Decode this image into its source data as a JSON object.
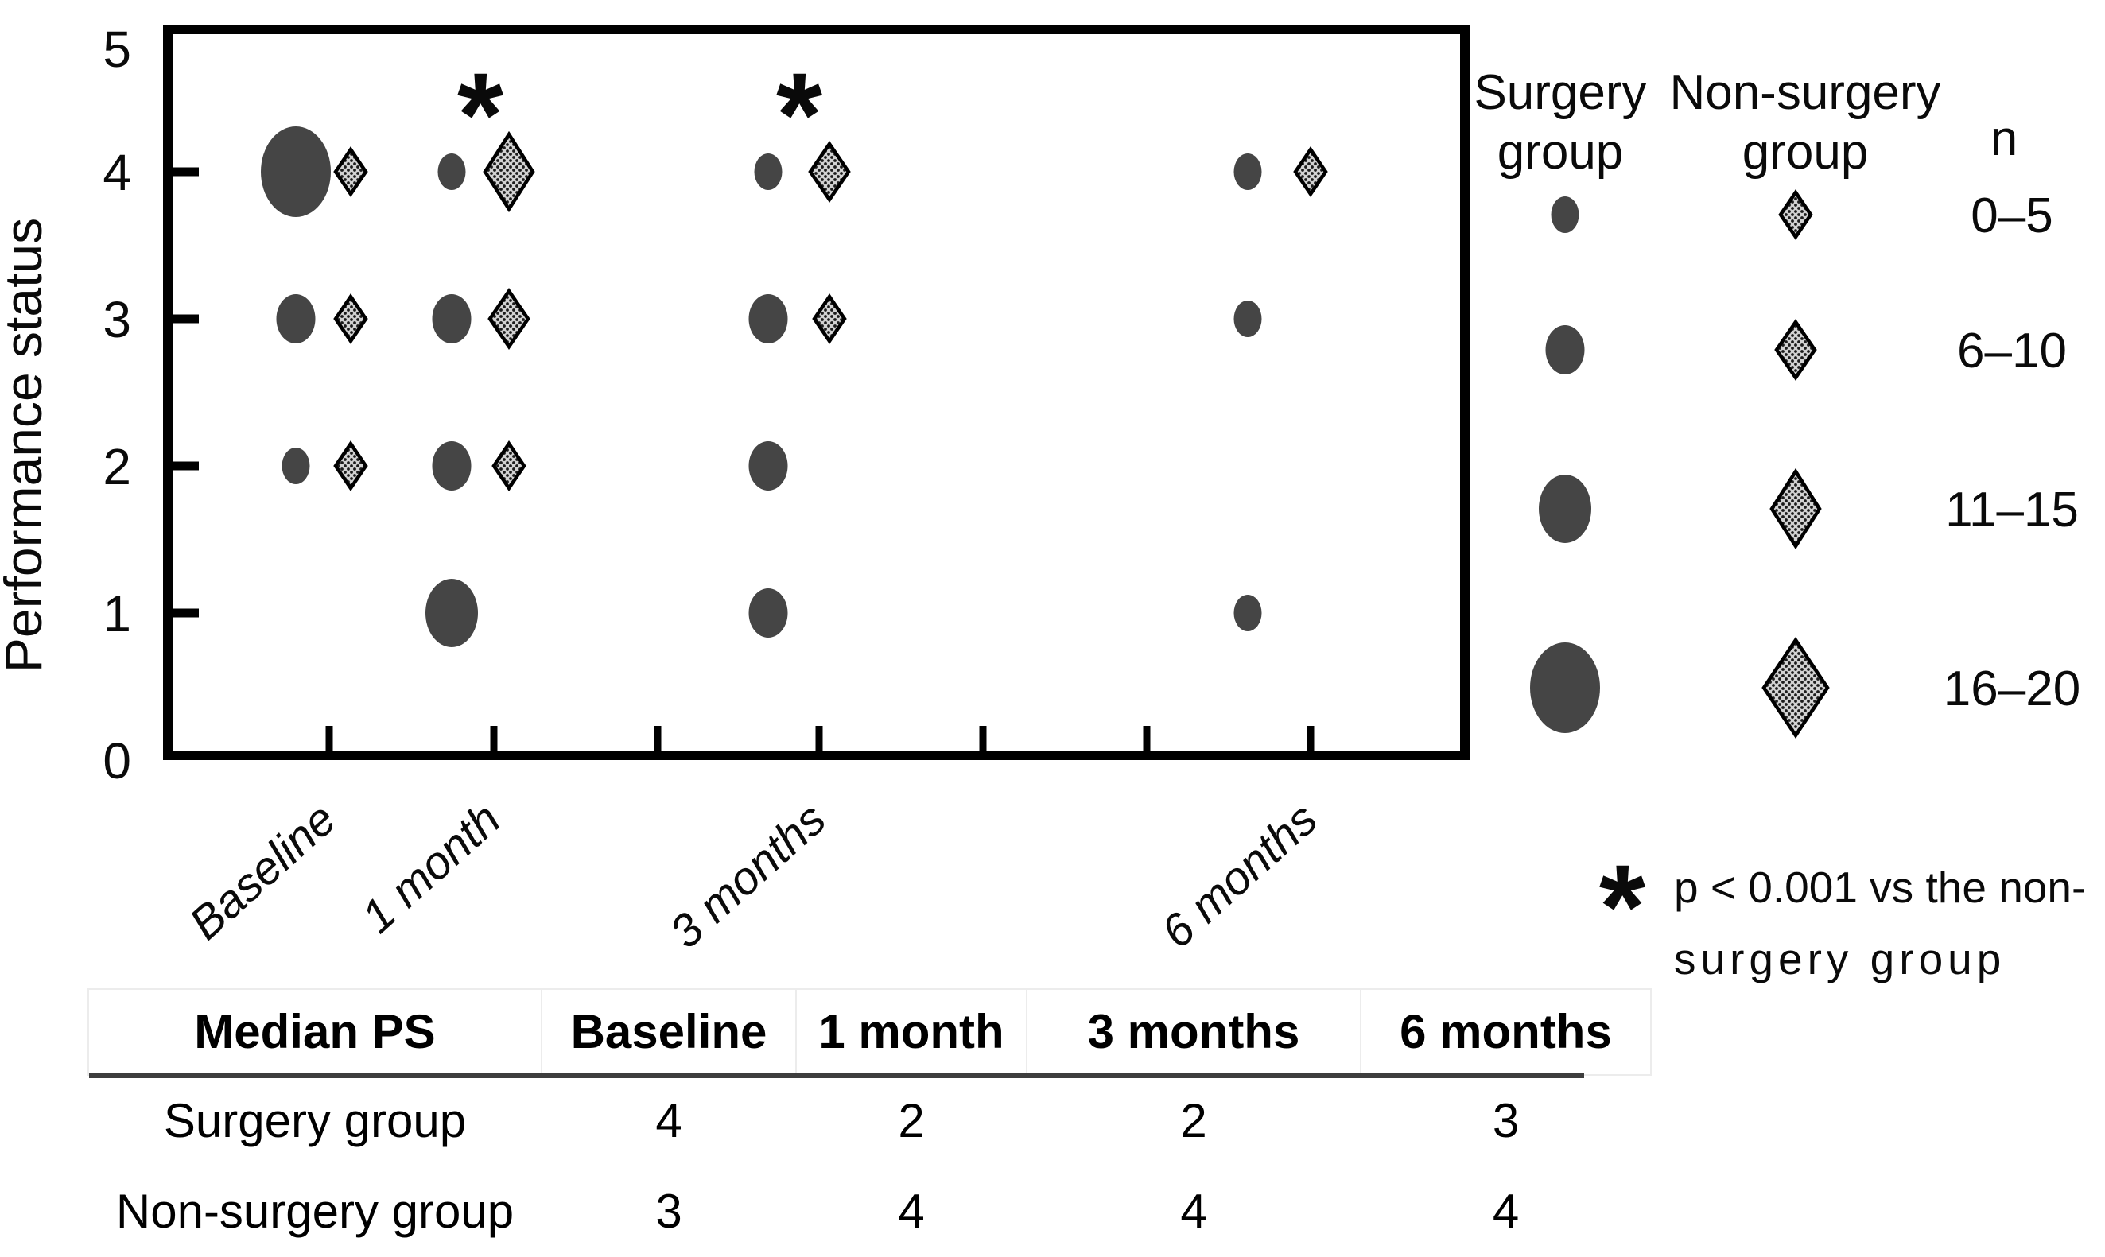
{
  "chart_data": {
    "type": "bubble",
    "title": "",
    "xlabel": "",
    "ylabel": "Performance status",
    "ylim": [
      0,
      5
    ],
    "y_ticks": [
      "0",
      "1",
      "2",
      "3",
      "4",
      "5"
    ],
    "x_categories": [
      "Baseline",
      "1 month",
      "3 months",
      "6 months"
    ],
    "grid": "off",
    "legend_position": "right",
    "series": [
      {
        "name": "Surgery group",
        "marker": "circle",
        "points": [
          {
            "x": "Baseline",
            "ps": 4,
            "n": "16–20"
          },
          {
            "x": "Baseline",
            "ps": 3,
            "n": "6–10"
          },
          {
            "x": "Baseline",
            "ps": 2,
            "n": "0–5"
          },
          {
            "x": "1 month",
            "ps": 4,
            "n": "0–5"
          },
          {
            "x": "1 month",
            "ps": 3,
            "n": "6–10"
          },
          {
            "x": "1 month",
            "ps": 2,
            "n": "6–10"
          },
          {
            "x": "1 month",
            "ps": 1,
            "n": "11–15"
          },
          {
            "x": "3 months",
            "ps": 4,
            "n": "0–5"
          },
          {
            "x": "3 months",
            "ps": 3,
            "n": "6–10"
          },
          {
            "x": "3 months",
            "ps": 2,
            "n": "6–10"
          },
          {
            "x": "3 months",
            "ps": 1,
            "n": "6–10"
          },
          {
            "x": "6 months",
            "ps": 4,
            "n": "0–5"
          },
          {
            "x": "6 months",
            "ps": 3,
            "n": "0–5"
          },
          {
            "x": "6 months",
            "ps": 1,
            "n": "0–5"
          }
        ]
      },
      {
        "name": "Non-surgery group",
        "marker": "diamond",
        "points": [
          {
            "x": "Baseline",
            "ps": 4,
            "n": "0–5"
          },
          {
            "x": "Baseline",
            "ps": 3,
            "n": "0–5"
          },
          {
            "x": "Baseline",
            "ps": 2,
            "n": "0–5"
          },
          {
            "x": "1 month",
            "ps": 4,
            "n": "11–15"
          },
          {
            "x": "1 month",
            "ps": 3,
            "n": "6–10"
          },
          {
            "x": "1 month",
            "ps": 2,
            "n": "0–5"
          },
          {
            "x": "3 months",
            "ps": 4,
            "n": "6–10"
          },
          {
            "x": "3 months",
            "ps": 3,
            "n": "0–5"
          },
          {
            "x": "6 months",
            "ps": 4,
            "n": "0–5"
          }
        ]
      }
    ],
    "annotations": [
      {
        "symbol": "*",
        "x": "1 month",
        "ps": 4
      },
      {
        "symbol": "*",
        "x": "3 months",
        "ps": 4
      }
    ],
    "size_legend": {
      "surgery_header_lines": [
        "Surgery",
        "group"
      ],
      "nonsurgery_header_lines": [
        "Non-surgery",
        "group"
      ],
      "n_label": "n",
      "rows": [
        "0–5",
        "6–10",
        "11–15",
        "16–20"
      ]
    },
    "footnote": {
      "symbol": "*",
      "lines": [
        "p < 0.001 vs the non-",
        "surgery group"
      ]
    },
    "colors": {
      "circle_fill": "#454545",
      "diamond_fill": "#d2d2d2",
      "diamond_dot": "#1c1c1c",
      "axis": "#000000",
      "table_rule": "#3d3d3d"
    }
  },
  "table": {
    "header": [
      "Median PS",
      "Baseline",
      "1 month",
      "3 months",
      "6 months"
    ],
    "rows": [
      {
        "label": "Surgery group",
        "values": [
          "4",
          "2",
          "2",
          "3"
        ]
      },
      {
        "label": "Non-surgery group",
        "values": [
          "3",
          "4",
          "4",
          "4"
        ]
      }
    ]
  }
}
